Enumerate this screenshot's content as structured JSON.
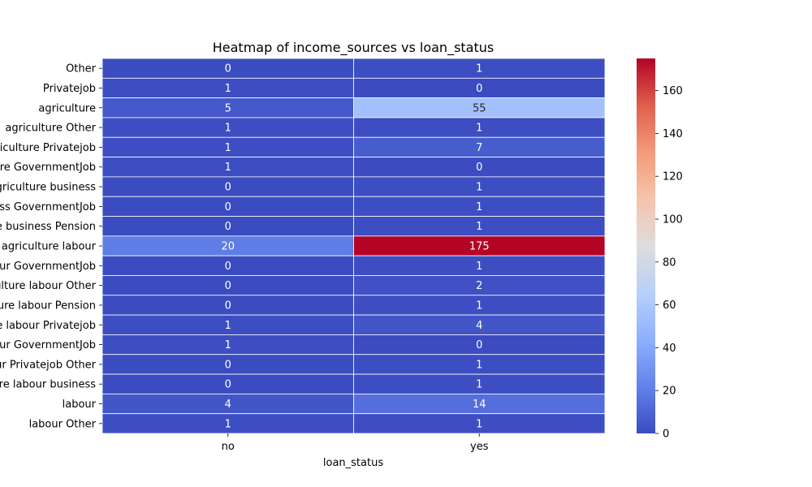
{
  "chart_data": {
    "type": "heatmap",
    "title": "Heatmap of income_sources vs loan_status",
    "xlabel": "loan_status",
    "ylabel": "",
    "columns": [
      "no",
      "yes"
    ],
    "rows": [
      "Other",
      "Privatejob",
      "agriculture",
      "agriculture Other",
      "agriculture Privatejob",
      "agriculture GovernmentJob",
      "agriculture business",
      "agriculture business GovernmentJob",
      "agriculture business Pension",
      "agriculture agriculture labour",
      "agriculture labour GovernmentJob",
      "agriculture labour Other",
      "agriculture labour Pension",
      "agriculture labour Privatejob",
      "labour GovernmentJob",
      "labour Privatejob Other",
      "agriculture labour business",
      "labour",
      "labour Other"
    ],
    "values": [
      [
        0,
        1
      ],
      [
        1,
        0
      ],
      [
        5,
        55
      ],
      [
        1,
        1
      ],
      [
        1,
        7
      ],
      [
        1,
        0
      ],
      [
        0,
        1
      ],
      [
        0,
        1
      ],
      [
        0,
        1
      ],
      [
        20,
        175
      ],
      [
        0,
        1
      ],
      [
        0,
        2
      ],
      [
        0,
        1
      ],
      [
        1,
        4
      ],
      [
        1,
        0
      ],
      [
        0,
        1
      ],
      [
        0,
        1
      ],
      [
        4,
        14
      ],
      [
        1,
        1
      ]
    ],
    "colorbar": {
      "min": 0,
      "max": 175,
      "ticks": [
        0,
        20,
        40,
        60,
        80,
        100,
        120,
        140,
        160
      ],
      "colormap": "coolwarm"
    }
  }
}
